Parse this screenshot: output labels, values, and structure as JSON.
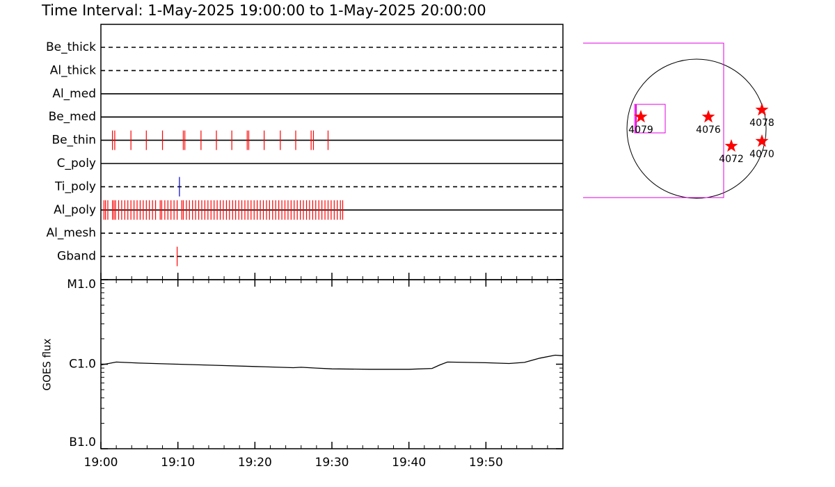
{
  "title": "Time Interval:  1-May-2025 19:00:00 to  1-May-2025 20:00:00",
  "chart_data": [
    {
      "type": "timeline",
      "xlim": [
        0,
        60
      ],
      "rows": [
        {
          "name": "Be_thick",
          "style": "dashed",
          "color": "#ff0000",
          "times": []
        },
        {
          "name": "Al_thick",
          "style": "dashed",
          "color": "#ff0000",
          "times": []
        },
        {
          "name": "Al_med",
          "style": "solid",
          "color": "#ff0000",
          "times": []
        },
        {
          "name": "Be_med",
          "style": "solid",
          "color": "#ff0000",
          "times": []
        },
        {
          "name": "Be_thin",
          "style": "solid",
          "color": "#ff0000",
          "times": [
            1.5,
            1.8,
            3.9,
            5.9,
            8.0,
            10.7,
            10.9,
            13.0,
            15.0,
            17.0,
            19.0,
            19.2,
            21.2,
            23.3,
            25.3,
            27.3,
            27.6,
            29.5
          ]
        },
        {
          "name": "C_poly",
          "style": "solid",
          "color": "#ff0000",
          "times": []
        },
        {
          "name": "Ti_poly",
          "style": "dashed",
          "color": "#0000cc",
          "times": [
            10.2
          ]
        },
        {
          "name": "Al_poly",
          "style": "solid",
          "color": "#ff0000",
          "times": [
            0.4,
            0.6,
            0.9,
            1.5,
            1.7,
            1.9,
            2.3,
            2.7,
            3.1,
            3.5,
            3.9,
            4.3,
            4.7,
            5.1,
            5.5,
            5.9,
            6.3,
            6.7,
            7.1,
            7.7,
            7.9,
            8.3,
            8.7,
            9.1,
            9.5,
            9.9,
            10.5,
            10.7,
            11.1,
            11.5,
            11.9,
            12.3,
            12.7,
            13.1,
            13.5,
            13.9,
            14.3,
            14.7,
            15.1,
            15.5,
            15.9,
            16.3,
            16.7,
            17.1,
            17.5,
            17.9,
            18.3,
            18.7,
            19.1,
            19.5,
            19.9,
            20.3,
            20.7,
            21.1,
            21.5,
            21.9,
            22.3,
            22.7,
            23.1,
            23.5,
            23.9,
            24.3,
            24.7,
            25.1,
            25.5,
            25.9,
            26.3,
            26.7,
            27.1,
            27.5,
            27.9,
            28.3,
            28.7,
            29.1,
            29.5,
            29.9,
            30.3,
            30.7,
            31.1,
            31.4
          ]
        },
        {
          "name": "Al_mesh",
          "style": "dashed",
          "color": "#ff0000",
          "times": []
        },
        {
          "name": "Gband",
          "style": "dashed",
          "color": "#ff0000",
          "times": [
            9.9
          ]
        }
      ]
    },
    {
      "type": "line",
      "ylabel": "GOES flux",
      "log": true,
      "color": "#000000",
      "x": [
        0,
        2,
        5,
        10,
        15,
        20,
        25,
        26,
        28,
        30,
        35,
        40,
        43,
        44,
        45,
        50,
        53,
        55,
        57,
        59,
        60
      ],
      "values": [
        9.8e-07,
        1.06e-06,
        1.03e-06,
        1e-06,
        9.7e-07,
        9.4e-07,
        9.1e-07,
        9.2e-07,
        9e-07,
        8.8e-07,
        8.7e-07,
        8.7e-07,
        8.9e-07,
        9.8e-07,
        1.06e-06,
        1.04e-06,
        1.02e-06,
        1.05e-06,
        1.18e-06,
        1.28e-06,
        1.26e-06
      ],
      "xlim": [
        0,
        60
      ],
      "xticks": [
        {
          "value": 0,
          "label": "19:00"
        },
        {
          "value": 10,
          "label": "19:10"
        },
        {
          "value": 20,
          "label": "19:20"
        },
        {
          "value": 30,
          "label": "19:30"
        },
        {
          "value": 40,
          "label": "19:40"
        },
        {
          "value": 50,
          "label": "19:50"
        }
      ],
      "ylim": [
        1e-07,
        1e-05
      ],
      "yticks": [
        {
          "value": 1e-07,
          "label": "B1.0"
        },
        {
          "value": 1e-06,
          "label": "C1.0"
        },
        {
          "value": 1e-05,
          "label": "M1.0"
        }
      ]
    }
  ],
  "map": {
    "regions": [
      "4079",
      "4076",
      "4078",
      "4072",
      "4070"
    ]
  }
}
